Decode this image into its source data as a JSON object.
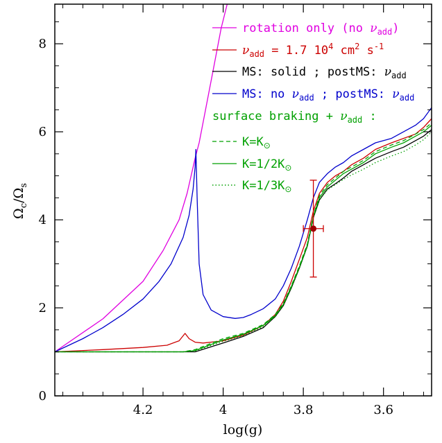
{
  "chart_data": {
    "type": "line",
    "xlabel_main": "log(g)",
    "ylabel_main": "Ω",
    "ylabel_sub_c": "c",
    "ylabel_div": "/Ω",
    "ylabel_sub_s": "s",
    "xlim": [
      4.42,
      3.48
    ],
    "ylim": [
      0,
      8.9
    ],
    "x_ticks": [
      4.2,
      4.0,
      3.8,
      3.6
    ],
    "x_tick_labels": [
      "4.2",
      "4",
      "3.8",
      "3.6"
    ],
    "y_ticks": [
      0,
      2,
      4,
      6,
      8
    ],
    "y_tick_labels": [
      "0",
      "2",
      "4",
      "6",
      "8"
    ],
    "grid": false,
    "legend_position": "top-right",
    "colors": {
      "magenta": "#e000e0",
      "red": "#cc0000",
      "black": "#000000",
      "blue": "#0000cc",
      "green": "#00a000"
    },
    "legend": {
      "rotation": {
        "pre": "rotation only (no ",
        "nu": "ν",
        "sub": "add",
        "post": ")"
      },
      "nuadd": {
        "nu": "ν",
        "sub": "add",
        "mid": " = 1.7 10",
        "sup4": "4",
        "cm": " cm",
        "sup2": "2",
        "s": " s",
        "supm1": "-1"
      },
      "ms_solid": {
        "pre": "MS: solid ; postMS: ",
        "nu": "ν",
        "sub": "add"
      },
      "ms_no": {
        "pre": "MS: no ",
        "nu1": "ν",
        "sub1": "add",
        "mid": " ; postMS: ",
        "nu2": "ν",
        "sub2": "add"
      },
      "braking": {
        "pre": "surface braking + ",
        "nu": "ν",
        "sub": "add",
        "post": " :"
      },
      "k1": {
        "pre": "K=K",
        "sun": "⊙"
      },
      "k2": {
        "pre": "K=1/2K",
        "sun": "⊙"
      },
      "k3": {
        "pre": "K=1/3K",
        "sun": "⊙"
      }
    },
    "observation": {
      "x": 3.775,
      "y": 3.8,
      "xerr": 0.025,
      "yerr_low": 1.1,
      "yerr_high": 1.1
    },
    "series": [
      {
        "key": "rotation",
        "color": "#e000e0",
        "dash": "",
        "x": [
          4.42,
          4.3,
          4.2,
          4.15,
          4.11,
          4.09,
          4.07,
          4.06,
          4.045,
          4.025,
          4.005,
          3.99
        ],
        "y": [
          1.0,
          1.75,
          2.6,
          3.3,
          4.0,
          4.6,
          5.4,
          5.75,
          6.45,
          7.4,
          8.35,
          8.9
        ]
      },
      {
        "key": "ms_no",
        "color": "#0000cc",
        "dash": "",
        "x": [
          4.42,
          4.35,
          4.3,
          4.25,
          4.2,
          4.16,
          4.13,
          4.1,
          4.085,
          4.075,
          4.07,
          4.068,
          4.065,
          4.06,
          4.05,
          4.03,
          4.0,
          3.97,
          3.95,
          3.93,
          3.9,
          3.87,
          3.85,
          3.83,
          3.81,
          3.79,
          3.775,
          3.76,
          3.74,
          3.72,
          3.7,
          3.68,
          3.65,
          3.62,
          3.58,
          3.55,
          3.52,
          3.5,
          3.48
        ],
        "y": [
          1.0,
          1.3,
          1.55,
          1.85,
          2.2,
          2.6,
          3.0,
          3.6,
          4.1,
          4.7,
          5.2,
          5.6,
          4.5,
          3.0,
          2.3,
          1.95,
          1.8,
          1.76,
          1.78,
          1.85,
          1.98,
          2.2,
          2.5,
          2.9,
          3.4,
          4.0,
          4.5,
          4.85,
          5.05,
          5.2,
          5.3,
          5.45,
          5.6,
          5.75,
          5.85,
          6.0,
          6.15,
          6.3,
          6.55
        ]
      },
      {
        "key": "nuadd",
        "color": "#cc0000",
        "dash": "",
        "x": [
          4.42,
          4.3,
          4.2,
          4.14,
          4.11,
          4.095,
          4.085,
          4.07,
          4.05,
          4.0,
          3.95,
          3.9,
          3.87,
          3.85,
          3.83,
          3.81,
          3.79,
          3.775,
          3.76,
          3.74,
          3.72,
          3.7,
          3.68,
          3.65,
          3.62,
          3.58,
          3.55,
          3.52,
          3.5,
          3.48
        ],
        "y": [
          1.0,
          1.05,
          1.1,
          1.15,
          1.25,
          1.42,
          1.3,
          1.22,
          1.2,
          1.25,
          1.38,
          1.6,
          1.85,
          2.15,
          2.6,
          3.1,
          3.6,
          4.2,
          4.6,
          4.85,
          5.0,
          5.1,
          5.25,
          5.4,
          5.6,
          5.75,
          5.85,
          5.95,
          6.1,
          6.3
        ]
      },
      {
        "key": "ms_solid",
        "color": "#000000",
        "dash": "",
        "x": [
          4.42,
          4.3,
          4.2,
          4.1,
          4.07,
          4.0,
          3.95,
          3.9,
          3.87,
          3.85,
          3.83,
          3.81,
          3.79,
          3.775,
          3.76,
          3.74,
          3.72,
          3.7,
          3.68,
          3.65,
          3.62,
          3.58,
          3.55,
          3.52,
          3.5,
          3.48
        ],
        "y": [
          1.0,
          1.0,
          1.0,
          1.0,
          1.0,
          1.2,
          1.35,
          1.55,
          1.8,
          2.05,
          2.45,
          2.9,
          3.4,
          4.05,
          4.45,
          4.7,
          4.82,
          4.95,
          5.1,
          5.25,
          5.4,
          5.55,
          5.65,
          5.8,
          5.9,
          6.05
        ]
      },
      {
        "key": "k1",
        "color": "#00a000",
        "dash": "6,4",
        "x": [
          4.42,
          4.3,
          4.2,
          4.1,
          4.07,
          4.0,
          3.95,
          3.9,
          3.87,
          3.85,
          3.83,
          3.81,
          3.79,
          3.775,
          3.76,
          3.74,
          3.72,
          3.7,
          3.68,
          3.65,
          3.62,
          3.58,
          3.55,
          3.52,
          3.5,
          3.48
        ],
        "y": [
          1.0,
          1.0,
          1.0,
          1.0,
          1.05,
          1.3,
          1.42,
          1.62,
          1.85,
          2.1,
          2.5,
          2.95,
          3.45,
          4.1,
          4.55,
          4.8,
          4.95,
          5.1,
          5.2,
          5.35,
          5.55,
          5.7,
          5.8,
          5.95,
          6.05,
          6.2
        ]
      },
      {
        "key": "k2",
        "color": "#00a000",
        "dash": "",
        "x": [
          4.42,
          4.3,
          4.2,
          4.1,
          4.07,
          4.0,
          3.95,
          3.9,
          3.87,
          3.85,
          3.83,
          3.81,
          3.79,
          3.775,
          3.76,
          3.74,
          3.72,
          3.7,
          3.68,
          3.65,
          3.62,
          3.58,
          3.55,
          3.52,
          3.5,
          3.48
        ],
        "y": [
          1.0,
          1.0,
          1.0,
          1.0,
          1.03,
          1.27,
          1.4,
          1.6,
          1.82,
          2.08,
          2.48,
          2.92,
          3.42,
          4.08,
          4.5,
          4.75,
          4.9,
          5.05,
          5.15,
          5.3,
          5.5,
          5.65,
          5.75,
          5.9,
          6.0,
          6.15
        ]
      },
      {
        "key": "k3",
        "color": "#00a000",
        "dash": "1.5,3",
        "x": [
          4.42,
          4.3,
          4.2,
          4.1,
          4.07,
          4.0,
          3.95,
          3.9,
          3.87,
          3.85,
          3.83,
          3.81,
          3.79,
          3.775,
          3.76,
          3.74,
          3.72,
          3.7,
          3.68,
          3.65,
          3.62,
          3.58,
          3.55,
          3.52,
          3.5,
          3.48
        ],
        "y": [
          1.0,
          1.0,
          1.0,
          1.0,
          1.02,
          1.24,
          1.37,
          1.57,
          1.8,
          2.05,
          2.45,
          2.9,
          3.4,
          4.05,
          4.45,
          4.68,
          4.8,
          4.92,
          5.02,
          5.15,
          5.3,
          5.45,
          5.55,
          5.7,
          5.82,
          6.0
        ]
      }
    ]
  }
}
